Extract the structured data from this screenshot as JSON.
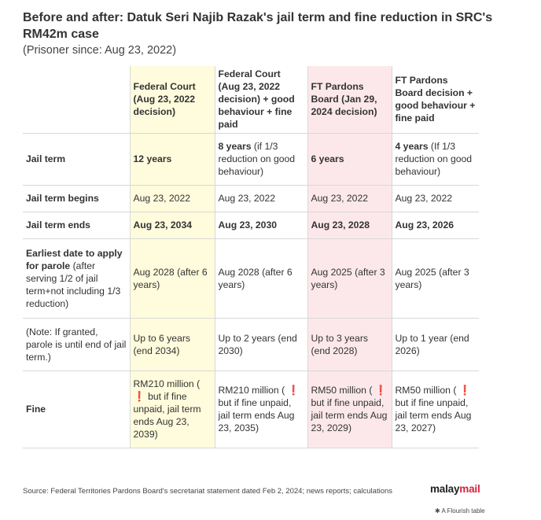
{
  "title": "Before and after: Datuk Seri Najib Razak's jail term and fine reduction in SRC's RM42m case",
  "subtitle": "(Prisoner since: Aug 23, 2022)",
  "table": {
    "headers": [
      "",
      "Federal Court (Aug 23, 2022 decision)",
      "Federal Court (Aug 23, 2022 decision) + good behaviour + fine paid",
      "FT Pardons Board (Jan 29, 2024 decision)",
      "FT Pardons Board decision + good behaviour + fine paid"
    ],
    "rows": [
      {
        "label": "Jail term",
        "c1": "12 years",
        "c2_bold": "8 years",
        "c2_rest": " (if 1/3 reduction on good behaviour)",
        "c3": "6 years",
        "c4_bold": "4 years",
        "c4_rest": " (If 1/3 reduction on good behaviour)"
      },
      {
        "label": "Jail term begins",
        "c1": "Aug 23, 2022",
        "c2": "Aug 23, 2022",
        "c3": "Aug 23, 2022",
        "c4": "Aug 23, 2022"
      },
      {
        "label": "Jail term ends",
        "c1": "Aug 23, 2034",
        "c2": "Aug 23, 2030",
        "c3": "Aug 23, 2028",
        "c4": "Aug 23, 2026"
      },
      {
        "label_bold": "Earliest date to apply for parole",
        "label_rest": " (after serving 1/2 of jail term+not including 1/3 reduction)",
        "c1": "Aug 2028 (after 6 years)",
        "c2": "Aug 2028 (after 6 years)",
        "c3": "Aug 2025 (after 3 years)",
        "c4": "Aug 2025 (after 3 years)"
      },
      {
        "label": "(Note: If granted, parole is until end of jail term.)",
        "c1": "Up to 6 years (end 2034)",
        "c2": "Up to 2 years (end 2030)",
        "c3": "Up to 3 years (end 2028)",
        "c4": "Up to 1 year (end 2026)"
      },
      {
        "label": "Fine",
        "c1_a": "RM210 million ( ",
        "c1_b": " but if fine unpaid, jail term ends Aug 23, 2039)",
        "c2_a": "RM210 million ( ",
        "c2_b": " but if fine unpaid, jail term ends Aug 23, 2035)",
        "c3_a": "RM50 million ( ",
        "c3_b": " but if fine unpaid, jail term ends Aug 23, 2029)",
        "c4_a": "RM50 million ( ",
        "c4_b": " but if fine unpaid, jail term ends Aug 23, 2027)",
        "warn_glyph": "❗"
      }
    ]
  },
  "source": "Source: Federal Territories Pardons Board's secretariat statement dated Feb 2, 2024; news reports; calculations",
  "logo": {
    "part1": "malay",
    "part2": "mail"
  },
  "flourish": "A Flourish table",
  "colors": {
    "federal_highlight": "#fefcdc",
    "pardons_highlight": "#fce8ea",
    "warn": "#d6233c"
  }
}
